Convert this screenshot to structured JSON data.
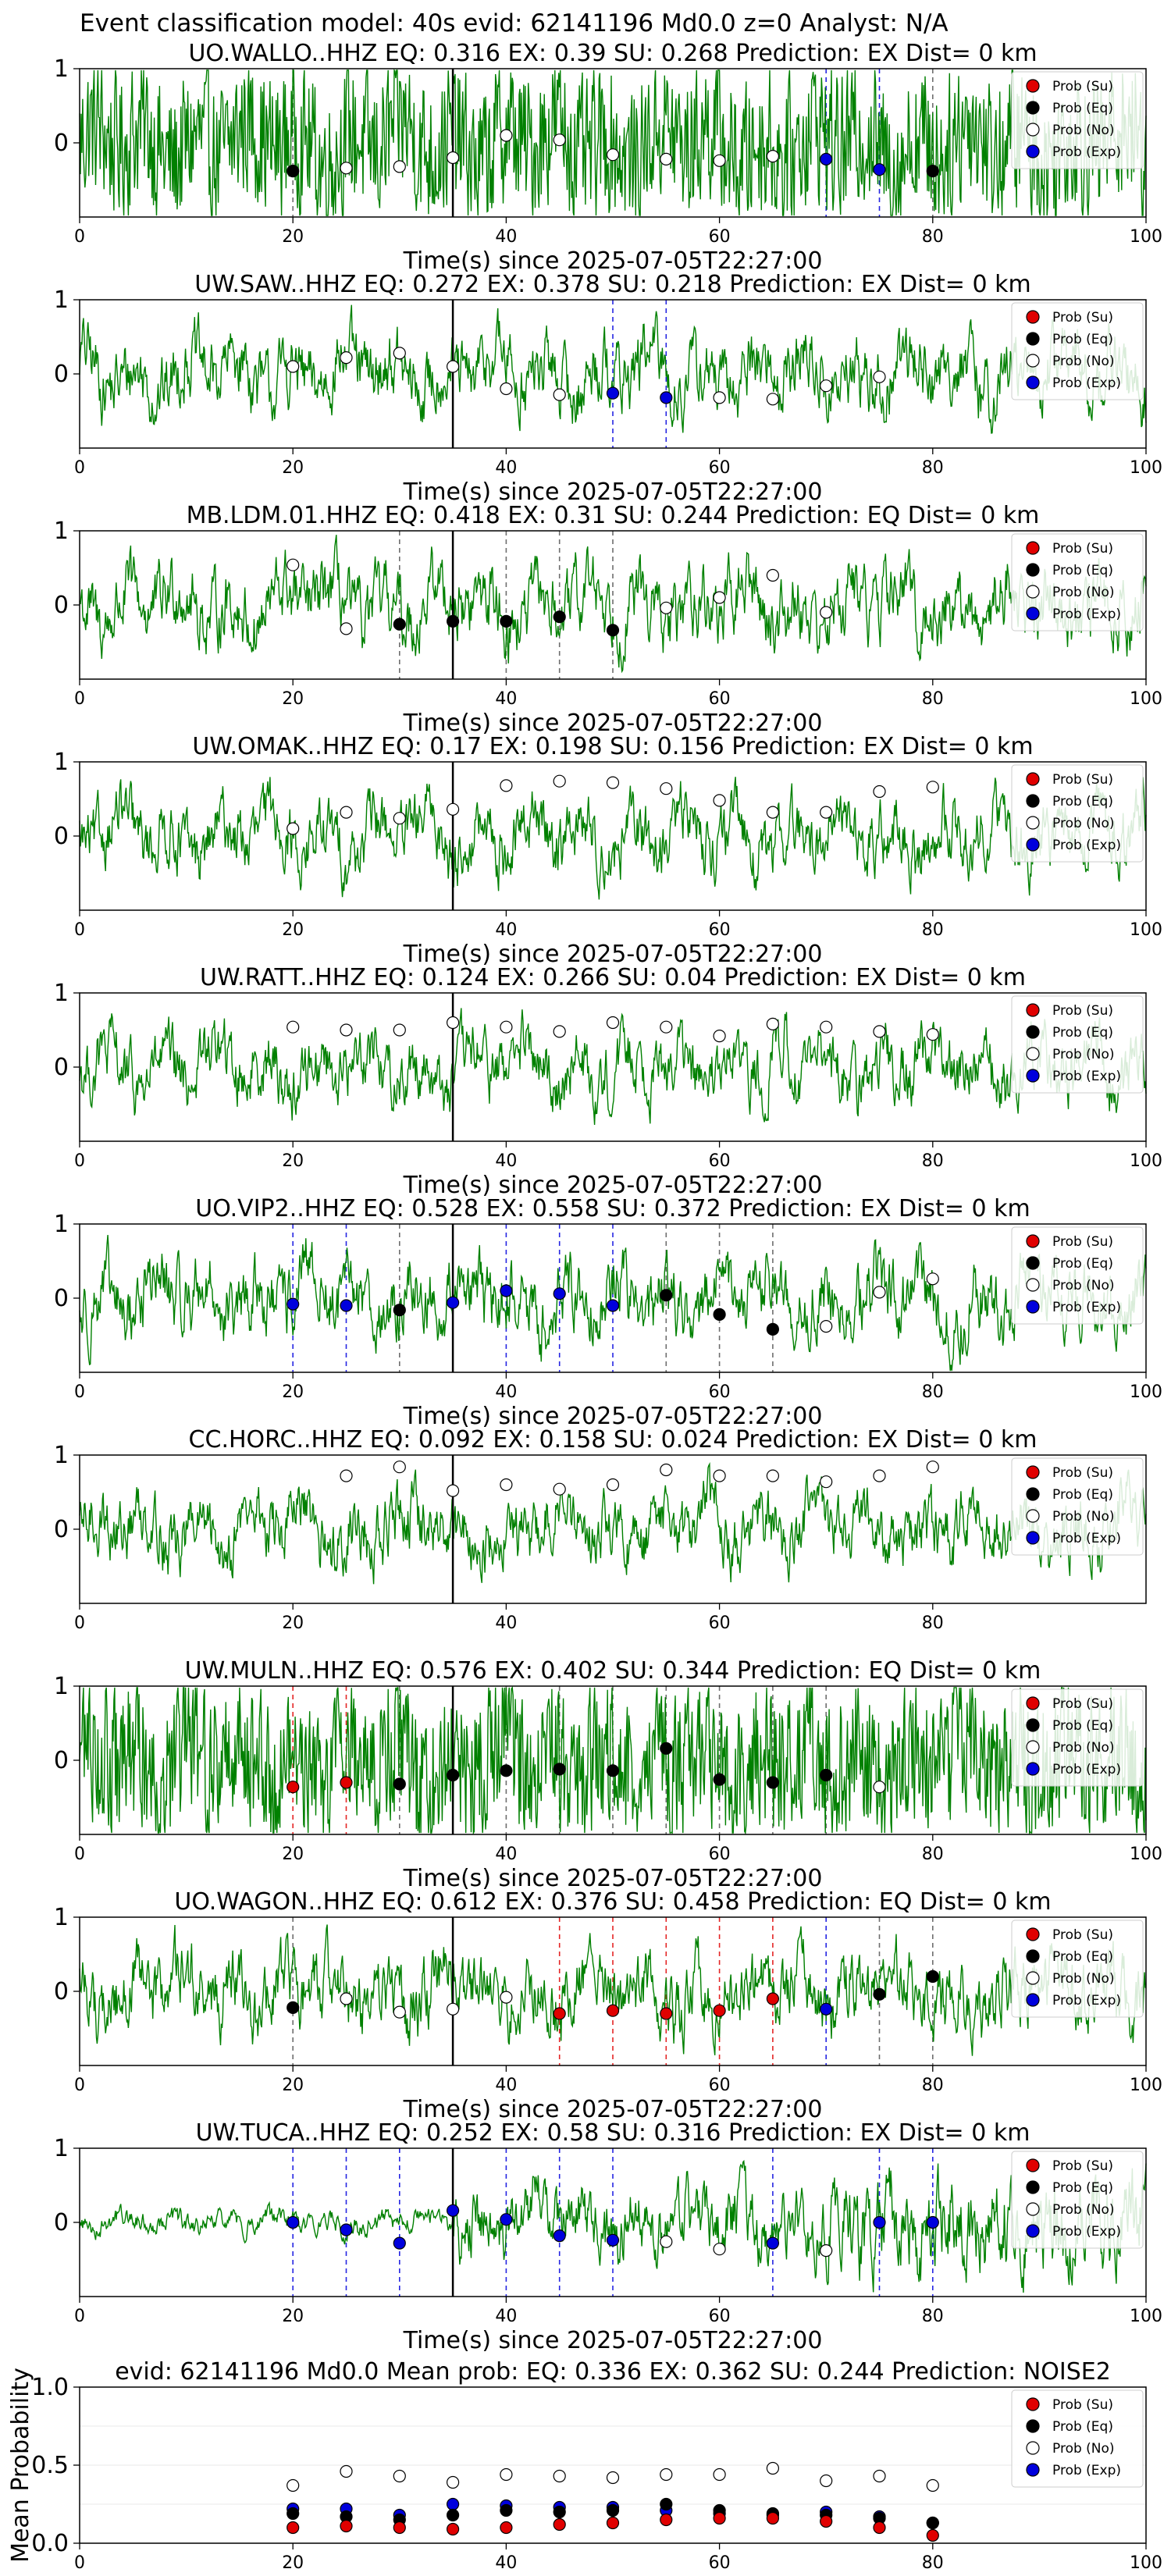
{
  "figure_title": "Event classification model: 40s evid: 62141196 Md0.0 z=0 Analyst: N/A",
  "colors": {
    "waveform": "#008000",
    "su": "#e00000",
    "eq": "#000000",
    "no": "#ffffff",
    "exp": "#0000dd",
    "vline": "#000000"
  },
  "legend": [
    "Prob (Su)",
    "Prob (Eq)",
    "Prob (No)",
    "Prob (Exp)"
  ],
  "xlabel": "Time(s) since 2025-07-05T22:27:00",
  "chart_data": [
    {
      "type": "line",
      "title": "UO.WALLO..HHZ   EQ: 0.316  EX: 0.39  SU: 0.268   Prediction: EX    Dist= 0 km",
      "xlim": [
        0,
        100
      ],
      "ylim": [
        -1,
        1
      ],
      "xticks": [
        0,
        20,
        40,
        60,
        80,
        100
      ],
      "yticks": [
        1,
        0
      ],
      "show_xlabel": true,
      "event_line": 35,
      "noise": "high",
      "points": [
        {
          "t": 20,
          "p": 0.31,
          "c": "eq"
        },
        {
          "t": 25,
          "p": 0.33,
          "c": "no"
        },
        {
          "t": 30,
          "p": 0.34,
          "c": "no"
        },
        {
          "t": 35,
          "p": 0.4,
          "c": "no"
        },
        {
          "t": 40,
          "p": 0.55,
          "c": "no"
        },
        {
          "t": 45,
          "p": 0.52,
          "c": "no"
        },
        {
          "t": 50,
          "p": 0.42,
          "c": "no"
        },
        {
          "t": 55,
          "p": 0.39,
          "c": "no"
        },
        {
          "t": 60,
          "p": 0.38,
          "c": "no"
        },
        {
          "t": 65,
          "p": 0.41,
          "c": "no"
        },
        {
          "t": 70,
          "p": 0.39,
          "c": "exp"
        },
        {
          "t": 75,
          "p": 0.32,
          "c": "exp"
        },
        {
          "t": 80,
          "p": 0.31,
          "c": "eq"
        }
      ]
    },
    {
      "type": "line",
      "title": "UW.SAW..HHZ   EQ: 0.272  EX: 0.378  SU: 0.218   Prediction: EX    Dist= 0 km",
      "xlim": [
        0,
        100
      ],
      "ylim": [
        -1,
        1
      ],
      "xticks": [
        0,
        20,
        40,
        60,
        80,
        100
      ],
      "yticks": [
        1,
        0
      ],
      "show_xlabel": true,
      "event_line": 35,
      "noise": "mid",
      "points": [
        {
          "t": 20,
          "p": 0.55,
          "c": "no"
        },
        {
          "t": 25,
          "p": 0.61,
          "c": "no"
        },
        {
          "t": 30,
          "p": 0.64,
          "c": "no"
        },
        {
          "t": 35,
          "p": 0.55,
          "c": "no"
        },
        {
          "t": 40,
          "p": 0.4,
          "c": "no"
        },
        {
          "t": 45,
          "p": 0.36,
          "c": "no"
        },
        {
          "t": 50,
          "p": 0.37,
          "c": "exp"
        },
        {
          "t": 55,
          "p": 0.34,
          "c": "exp"
        },
        {
          "t": 60,
          "p": 0.34,
          "c": "no"
        },
        {
          "t": 65,
          "p": 0.33,
          "c": "no"
        },
        {
          "t": 70,
          "p": 0.42,
          "c": "no"
        },
        {
          "t": 75,
          "p": 0.48,
          "c": "no"
        }
      ]
    },
    {
      "type": "line",
      "title": "MB.LDM.01.HHZ   EQ: 0.418  EX: 0.31  SU: 0.244   Prediction: EQ    Dist= 0 km",
      "xlim": [
        0,
        100
      ],
      "ylim": [
        -1,
        1
      ],
      "xticks": [
        0,
        20,
        40,
        60,
        80,
        100
      ],
      "yticks": [
        1,
        0
      ],
      "show_xlabel": true,
      "event_line": 35,
      "noise": "mid",
      "points": [
        {
          "t": 20,
          "p": 0.77,
          "c": "no"
        },
        {
          "t": 25,
          "p": 0.34,
          "c": "no"
        },
        {
          "t": 30,
          "p": 0.37,
          "c": "eq"
        },
        {
          "t": 35,
          "p": 0.39,
          "c": "eq"
        },
        {
          "t": 40,
          "p": 0.39,
          "c": "eq"
        },
        {
          "t": 45,
          "p": 0.42,
          "c": "eq"
        },
        {
          "t": 50,
          "p": 0.33,
          "c": "eq"
        },
        {
          "t": 55,
          "p": 0.48,
          "c": "no"
        },
        {
          "t": 60,
          "p": 0.55,
          "c": "no"
        },
        {
          "t": 65,
          "p": 0.7,
          "c": "no"
        },
        {
          "t": 70,
          "p": 0.45,
          "c": "no"
        }
      ]
    },
    {
      "type": "line",
      "title": "UW.OMAK..HHZ   EQ: 0.17  EX: 0.198  SU: 0.156   Prediction: EX    Dist= 0 km",
      "xlim": [
        0,
        100
      ],
      "ylim": [
        -1,
        1
      ],
      "xticks": [
        0,
        20,
        40,
        60,
        80,
        100
      ],
      "yticks": [
        1,
        0
      ],
      "show_xlabel": true,
      "event_line": 35,
      "noise": "low",
      "points": [
        {
          "t": 20,
          "p": 0.55,
          "c": "no"
        },
        {
          "t": 25,
          "p": 0.66,
          "c": "no"
        },
        {
          "t": 30,
          "p": 0.62,
          "c": "no"
        },
        {
          "t": 35,
          "p": 0.68,
          "c": "no"
        },
        {
          "t": 40,
          "p": 0.84,
          "c": "no"
        },
        {
          "t": 45,
          "p": 0.87,
          "c": "no"
        },
        {
          "t": 50,
          "p": 0.86,
          "c": "no"
        },
        {
          "t": 55,
          "p": 0.82,
          "c": "no"
        },
        {
          "t": 60,
          "p": 0.74,
          "c": "no"
        },
        {
          "t": 65,
          "p": 0.66,
          "c": "no"
        },
        {
          "t": 70,
          "p": 0.66,
          "c": "no"
        },
        {
          "t": 75,
          "p": 0.8,
          "c": "no"
        },
        {
          "t": 80,
          "p": 0.83,
          "c": "no"
        }
      ]
    },
    {
      "type": "line",
      "title": "UW.RATT..HHZ   EQ: 0.124  EX: 0.266  SU: 0.04   Prediction: EX    Dist= 0 km",
      "xlim": [
        0,
        100
      ],
      "ylim": [
        -1,
        1
      ],
      "xticks": [
        0,
        20,
        40,
        60,
        80,
        100
      ],
      "yticks": [
        1,
        0
      ],
      "show_xlabel": true,
      "event_line": 35,
      "noise": "low",
      "points": [
        {
          "t": 20,
          "p": 0.77,
          "c": "no"
        },
        {
          "t": 25,
          "p": 0.75,
          "c": "no"
        },
        {
          "t": 30,
          "p": 0.75,
          "c": "no"
        },
        {
          "t": 35,
          "p": 0.8,
          "c": "no"
        },
        {
          "t": 40,
          "p": 0.77,
          "c": "no"
        },
        {
          "t": 45,
          "p": 0.74,
          "c": "no"
        },
        {
          "t": 50,
          "p": 0.8,
          "c": "no"
        },
        {
          "t": 55,
          "p": 0.77,
          "c": "no"
        },
        {
          "t": 60,
          "p": 0.71,
          "c": "no"
        },
        {
          "t": 65,
          "p": 0.79,
          "c": "no"
        },
        {
          "t": 70,
          "p": 0.77,
          "c": "no"
        },
        {
          "t": 75,
          "p": 0.74,
          "c": "no"
        },
        {
          "t": 80,
          "p": 0.72,
          "c": "no"
        }
      ]
    },
    {
      "type": "line",
      "title": "UO.VIP2..HHZ   EQ: 0.528  EX: 0.558  SU: 0.372   Prediction: EX    Dist= 0 km",
      "xlim": [
        0,
        100
      ],
      "ylim": [
        -1,
        1
      ],
      "xticks": [
        0,
        20,
        40,
        60,
        80,
        100
      ],
      "yticks": [
        1,
        0
      ],
      "show_xlabel": true,
      "event_line": 35,
      "noise": "mid",
      "points": [
        {
          "t": 20,
          "p": 0.46,
          "c": "exp"
        },
        {
          "t": 25,
          "p": 0.45,
          "c": "exp"
        },
        {
          "t": 30,
          "p": 0.42,
          "c": "eq"
        },
        {
          "t": 35,
          "p": 0.47,
          "c": "exp"
        },
        {
          "t": 40,
          "p": 0.55,
          "c": "exp"
        },
        {
          "t": 45,
          "p": 0.53,
          "c": "exp"
        },
        {
          "t": 50,
          "p": 0.45,
          "c": "exp"
        },
        {
          "t": 55,
          "p": 0.52,
          "c": "eq"
        },
        {
          "t": 60,
          "p": 0.39,
          "c": "eq"
        },
        {
          "t": 65,
          "p": 0.29,
          "c": "eq"
        },
        {
          "t": 70,
          "p": 0.31,
          "c": "no"
        },
        {
          "t": 75,
          "p": 0.54,
          "c": "no"
        },
        {
          "t": 80,
          "p": 0.63,
          "c": "no"
        }
      ]
    },
    {
      "type": "line",
      "title": "CC.HORC..HHZ   EQ: 0.092  EX: 0.158  SU: 0.024   Prediction: EX    Dist= 0 km",
      "xlim": [
        0,
        100
      ],
      "ylim": [
        -1,
        1
      ],
      "xticks": [
        0,
        20,
        40,
        60,
        80
      ],
      "yticks": [
        1,
        0
      ],
      "show_xlabel": false,
      "event_line": 35,
      "noise": "low",
      "points": [
        {
          "t": 25,
          "p": 0.86,
          "c": "no"
        },
        {
          "t": 30,
          "p": 0.92,
          "c": "no"
        },
        {
          "t": 35,
          "p": 0.76,
          "c": "no"
        },
        {
          "t": 40,
          "p": 0.8,
          "c": "no"
        },
        {
          "t": 45,
          "p": 0.77,
          "c": "no"
        },
        {
          "t": 50,
          "p": 0.8,
          "c": "no"
        },
        {
          "t": 55,
          "p": 0.9,
          "c": "no"
        },
        {
          "t": 60,
          "p": 0.86,
          "c": "no"
        },
        {
          "t": 65,
          "p": 0.86,
          "c": "no"
        },
        {
          "t": 70,
          "p": 0.82,
          "c": "no"
        },
        {
          "t": 75,
          "p": 0.86,
          "c": "no"
        },
        {
          "t": 80,
          "p": 0.92,
          "c": "no"
        }
      ]
    },
    {
      "type": "line",
      "title": "UW.MULN..HHZ   EQ: 0.576  EX: 0.402  SU: 0.344   Prediction: EQ    Dist= 0 km",
      "xlim": [
        0,
        100
      ],
      "ylim": [
        -1,
        1
      ],
      "xticks": [
        0,
        20,
        40,
        60,
        80,
        100
      ],
      "yticks": [
        1,
        0
      ],
      "show_xlabel": true,
      "event_line": 35,
      "noise": "high",
      "points": [
        {
          "t": 20,
          "p": 0.32,
          "c": "su"
        },
        {
          "t": 25,
          "p": 0.35,
          "c": "su"
        },
        {
          "t": 30,
          "p": 0.34,
          "c": "eq"
        },
        {
          "t": 35,
          "p": 0.4,
          "c": "eq"
        },
        {
          "t": 40,
          "p": 0.43,
          "c": "eq"
        },
        {
          "t": 45,
          "p": 0.44,
          "c": "eq"
        },
        {
          "t": 50,
          "p": 0.43,
          "c": "eq"
        },
        {
          "t": 55,
          "p": 0.58,
          "c": "eq"
        },
        {
          "t": 60,
          "p": 0.37,
          "c": "eq"
        },
        {
          "t": 65,
          "p": 0.35,
          "c": "eq"
        },
        {
          "t": 70,
          "p": 0.4,
          "c": "eq"
        },
        {
          "t": 75,
          "p": 0.32,
          "c": "no"
        }
      ]
    },
    {
      "type": "line",
      "title": "UO.WAGON..HHZ   EQ: 0.612  EX: 0.376  SU: 0.458   Prediction: EQ    Dist= 0 km",
      "xlim": [
        0,
        100
      ],
      "ylim": [
        -1,
        1
      ],
      "xticks": [
        0,
        20,
        40,
        60,
        80,
        100
      ],
      "yticks": [
        1,
        0
      ],
      "show_xlabel": true,
      "event_line": 35,
      "noise": "mid",
      "points": [
        {
          "t": 20,
          "p": 0.39,
          "c": "eq"
        },
        {
          "t": 25,
          "p": 0.45,
          "c": "no"
        },
        {
          "t": 30,
          "p": 0.36,
          "c": "no"
        },
        {
          "t": 35,
          "p": 0.38,
          "c": "no"
        },
        {
          "t": 40,
          "p": 0.46,
          "c": "no"
        },
        {
          "t": 45,
          "p": 0.35,
          "c": "su"
        },
        {
          "t": 50,
          "p": 0.37,
          "c": "su"
        },
        {
          "t": 55,
          "p": 0.35,
          "c": "su"
        },
        {
          "t": 60,
          "p": 0.37,
          "c": "su"
        },
        {
          "t": 65,
          "p": 0.45,
          "c": "su"
        },
        {
          "t": 70,
          "p": 0.38,
          "c": "exp"
        },
        {
          "t": 75,
          "p": 0.48,
          "c": "eq"
        },
        {
          "t": 80,
          "p": 0.6,
          "c": "eq"
        }
      ]
    },
    {
      "type": "line",
      "title": "UW.TUCA..HHZ   EQ: 0.252  EX: 0.58  SU: 0.316   Prediction: EX    Dist= 0 km",
      "xlim": [
        0,
        100
      ],
      "ylim": [
        -1,
        1
      ],
      "xticks": [
        0,
        20,
        40,
        60,
        80,
        100
      ],
      "yticks": [
        1,
        0
      ],
      "show_xlabel": true,
      "event_line": 35,
      "noise": "growing",
      "points": [
        {
          "t": 20,
          "p": 0.5,
          "c": "exp"
        },
        {
          "t": 25,
          "p": 0.45,
          "c": "exp"
        },
        {
          "t": 30,
          "p": 0.36,
          "c": "exp"
        },
        {
          "t": 35,
          "p": 0.58,
          "c": "exp"
        },
        {
          "t": 40,
          "p": 0.52,
          "c": "exp"
        },
        {
          "t": 45,
          "p": 0.41,
          "c": "exp"
        },
        {
          "t": 50,
          "p": 0.38,
          "c": "exp"
        },
        {
          "t": 55,
          "p": 0.37,
          "c": "no"
        },
        {
          "t": 60,
          "p": 0.32,
          "c": "no"
        },
        {
          "t": 65,
          "p": 0.36,
          "c": "exp"
        },
        {
          "t": 70,
          "p": 0.31,
          "c": "no"
        },
        {
          "t": 75,
          "p": 0.5,
          "c": "exp"
        },
        {
          "t": 80,
          "p": 0.5,
          "c": "exp"
        }
      ]
    },
    {
      "type": "scatter",
      "title": "evid: 62141196  Md0.0   Mean prob:   EQ: 0.336  EX: 0.362  SU: 0.244   Prediction: NOISE2",
      "ylabel": "Mean Probability",
      "xlim": [
        0,
        100
      ],
      "ylim": [
        0,
        1
      ],
      "xticks": [
        0,
        20,
        40,
        60,
        80,
        100
      ],
      "yticks": [
        1.0,
        0.5,
        0.0
      ],
      "show_xlabel": false,
      "x": [
        20,
        25,
        30,
        35,
        40,
        45,
        50,
        55,
        60,
        65,
        70,
        75,
        80
      ],
      "series": [
        {
          "name": "Prob (Su)",
          "key": "su",
          "values": [
            0.1,
            0.11,
            0.1,
            0.09,
            0.1,
            0.12,
            0.13,
            0.15,
            0.16,
            0.16,
            0.14,
            0.1,
            0.05
          ]
        },
        {
          "name": "Prob (Eq)",
          "key": "eq",
          "values": [
            0.19,
            0.17,
            0.15,
            0.18,
            0.21,
            0.2,
            0.21,
            0.25,
            0.21,
            0.19,
            0.18,
            0.16,
            0.13
          ]
        },
        {
          "name": "Prob (No)",
          "key": "no",
          "values": [
            0.37,
            0.46,
            0.43,
            0.39,
            0.44,
            0.43,
            0.42,
            0.44,
            0.44,
            0.48,
            0.4,
            0.43,
            0.37
          ]
        },
        {
          "name": "Prob (Exp)",
          "key": "exp",
          "values": [
            0.22,
            0.22,
            0.18,
            0.25,
            0.24,
            0.23,
            0.23,
            0.21,
            0.19,
            0.18,
            0.2,
            0.17,
            0.13
          ]
        }
      ]
    }
  ]
}
